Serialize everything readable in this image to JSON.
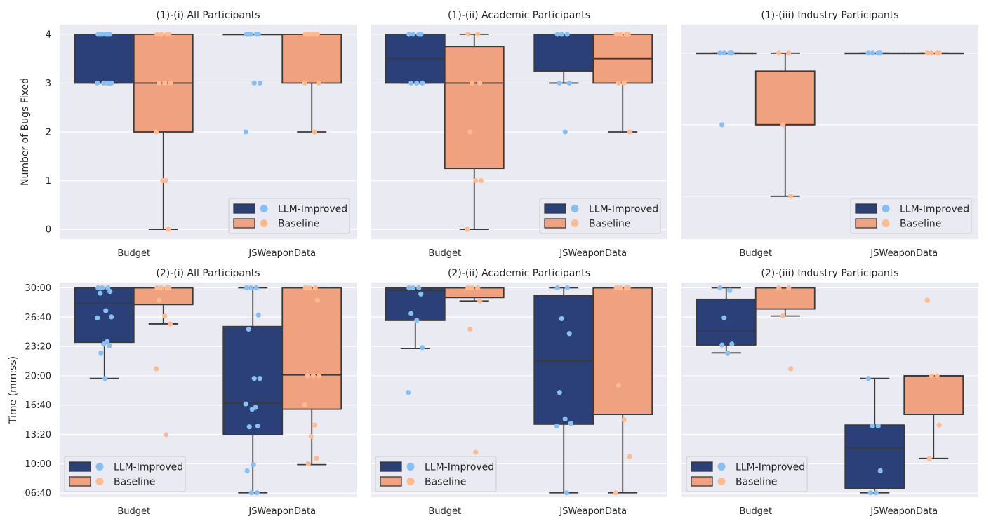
{
  "colors": {
    "background": "#eaeaf2",
    "grid": "#ffffff",
    "llm_box": "#2b3f78",
    "baseline_box": "#f0a17f",
    "llm_point": "#87bff2",
    "baseline_point": "#ffba8f",
    "line": "#3a3a3a"
  },
  "legend": {
    "llm": "LLM-Improved",
    "baseline": "Baseline"
  },
  "chart_data": [
    {
      "type": "box",
      "title": "(1)-(i) All Participants",
      "ylabel": "Number of Bugs Fixed",
      "categories": [
        "Budget",
        "JSWeaponData"
      ],
      "ylim": [
        -0.2,
        4.2
      ],
      "yticks": [
        0,
        1,
        2,
        3,
        4
      ],
      "yticklabels": [
        "0",
        "1",
        "2",
        "3",
        "4"
      ],
      "legend_position": "lower-right",
      "series": [
        {
          "name": "LLM-Improved",
          "boxes": [
            {
              "whislo": 3,
              "q1": 3,
              "med": 4,
              "q3": 4,
              "whishi": 4
            },
            {
              "whislo": 4,
              "q1": 4,
              "med": 4,
              "q3": 4,
              "whishi": 4
            }
          ],
          "points": [
            [
              4,
              4,
              4,
              4,
              4,
              4,
              3,
              3,
              3,
              3,
              3
            ],
            [
              4,
              4,
              4,
              4,
              4,
              3,
              3,
              2
            ]
          ]
        },
        {
          "name": "Baseline",
          "boxes": [
            {
              "whislo": 0,
              "q1": 2,
              "med": 3,
              "q3": 4,
              "whishi": 4
            },
            {
              "whislo": 2,
              "q1": 3,
              "med": 4,
              "q3": 4,
              "whishi": 4
            }
          ],
          "points": [
            [
              4,
              4,
              4,
              4,
              3,
              3,
              3,
              2,
              1,
              1,
              0
            ],
            [
              4,
              4,
              4,
              4,
              4,
              4,
              3,
              3,
              2
            ]
          ]
        }
      ]
    },
    {
      "type": "box",
      "title": "(1)-(ii) Academic Participants",
      "ylabel": "",
      "categories": [
        "Budget",
        "JSWeaponData"
      ],
      "ylim": [
        -0.2,
        4.2
      ],
      "yticks": [
        0,
        1,
        2,
        3,
        4
      ],
      "yticklabels": [
        "",
        "",
        "",
        "",
        ""
      ],
      "legend_position": "lower-right",
      "series": [
        {
          "name": "LLM-Improved",
          "boxes": [
            {
              "whislo": 3,
              "q1": 3,
              "med": 3.5,
              "q3": 4,
              "whishi": 4
            },
            {
              "whislo": 3,
              "q1": 3.25,
              "med": 4,
              "q3": 4,
              "whishi": 4
            }
          ],
          "points": [
            [
              4,
              4,
              4,
              4,
              3,
              3,
              3
            ],
            [
              4,
              4,
              4,
              3,
              3,
              2
            ]
          ]
        },
        {
          "name": "Baseline",
          "boxes": [
            {
              "whislo": 0,
              "q1": 1.25,
              "med": 3,
              "q3": 3.75,
              "whishi": 4
            },
            {
              "whislo": 2,
              "q1": 3,
              "med": 3.5,
              "q3": 4,
              "whishi": 4
            }
          ],
          "points": [
            [
              4,
              4,
              3,
              3,
              2,
              1,
              1,
              0
            ],
            [
              4,
              4,
              4,
              4,
              3,
              3,
              2
            ]
          ]
        }
      ]
    },
    {
      "type": "box",
      "title": "(1)-(iii) Industry Participants",
      "ylabel": "",
      "categories": [
        "Budget",
        "JSWeaponData"
      ],
      "ylim": [
        1.4,
        4.4
      ],
      "yticks": [
        2,
        3,
        4
      ],
      "yticklabels": [
        "",
        "",
        ""
      ],
      "legend_position": "lower-right",
      "series": [
        {
          "name": "LLM-Improved",
          "boxes": [
            {
              "whislo": 4,
              "q1": 4,
              "med": 4,
              "q3": 4,
              "whishi": 4
            },
            {
              "whislo": 4,
              "q1": 4,
              "med": 4,
              "q3": 4,
              "whishi": 4
            }
          ],
          "points": [
            [
              4,
              4,
              4,
              4,
              3
            ],
            [
              4,
              4,
              4,
              4
            ]
          ]
        },
        {
          "name": "Baseline",
          "boxes": [
            {
              "whislo": 2,
              "q1": 3,
              "med": 3,
              "q3": 3.75,
              "whishi": 4
            },
            {
              "whislo": 4,
              "q1": 4,
              "med": 4,
              "q3": 4,
              "whishi": 4
            }
          ],
          "points": [
            [
              4,
              4,
              3,
              2
            ],
            [
              4,
              4,
              4,
              4
            ]
          ]
        }
      ]
    },
    {
      "type": "box",
      "title": "(2)-(i) All Participants",
      "ylabel": "Time (mm:ss)",
      "categories": [
        "Budget",
        "JSWeaponData"
      ],
      "ylim": [
        6.2,
        30.6
      ],
      "yticks": [
        6.667,
        10,
        13.333,
        16.667,
        20,
        23.333,
        26.667,
        30
      ],
      "yticklabels": [
        "06:40",
        "10:00",
        "13:20",
        "16:40",
        "20:00",
        "23:20",
        "26:40",
        "30:00"
      ],
      "legend_position": "lower-left",
      "series": [
        {
          "name": "LLM-Improved",
          "boxes": [
            {
              "whislo": 19.7,
              "q1": 23.8,
              "med": 28.3,
              "q3": 30,
              "whishi": 30
            },
            {
              "whislo": 6.7,
              "q1": 13.3,
              "med": 16.9,
              "q3": 25.6,
              "whishi": 30
            }
          ],
          "points": [
            [
              30,
              30,
              30,
              29.6,
              29.4,
              27.4,
              26.7,
              26.6,
              23.9,
              23.6,
              23.4,
              22.6,
              19.7
            ],
            [
              30,
              30,
              30,
              26.9,
              25.3,
              19.7,
              19.7,
              16.8,
              16.4,
              16.2,
              14.3,
              14.2,
              9.9,
              9.2,
              6.7,
              6.7
            ]
          ]
        },
        {
          "name": "Baseline",
          "boxes": [
            {
              "whislo": 25.9,
              "q1": 28.1,
              "med": 30,
              "q3": 30,
              "whishi": 30
            },
            {
              "whislo": 9.9,
              "q1": 16.2,
              "med": 20.1,
              "q3": 30,
              "whishi": 30
            }
          ],
          "points": [
            [
              30,
              30,
              30,
              30,
              28.6,
              26.8,
              25.9,
              20.8,
              13.3
            ],
            [
              30,
              30,
              30,
              28.6,
              20,
              20,
              20,
              16.7,
              14.4,
              13.1,
              10.6,
              10
            ]
          ]
        }
      ]
    },
    {
      "type": "box",
      "title": "(2)-(ii) Academic Participants",
      "ylabel": "",
      "categories": [
        "Budget",
        "JSWeaponData"
      ],
      "ylim": [
        6.2,
        30.6
      ],
      "yticks": [
        6.667,
        10,
        13.333,
        16.667,
        20,
        23.333,
        26.667,
        30
      ],
      "yticklabels": [
        "",
        "",
        "",
        "",
        "",
        "",
        "",
        ""
      ],
      "legend_position": "lower-left",
      "series": [
        {
          "name": "LLM-Improved",
          "boxes": [
            {
              "whislo": 23.1,
              "q1": 26.3,
              "med": 29.7,
              "q3": 30,
              "whishi": 30
            },
            {
              "whislo": 6.7,
              "q1": 14.5,
              "med": 21.7,
              "q3": 29.1,
              "whishi": 30
            }
          ],
          "points": [
            [
              30,
              30,
              30,
              29.3,
              27.1,
              26.3,
              23.2,
              18.1
            ],
            [
              30,
              30,
              26.5,
              24.8,
              18.1,
              15.1,
              14.6,
              14.3,
              6.7
            ]
          ]
        },
        {
          "name": "Baseline",
          "boxes": [
            {
              "whislo": 28.5,
              "q1": 28.9,
              "med": 30,
              "q3": 30,
              "whishi": 30
            },
            {
              "whislo": 6.7,
              "q1": 15.6,
              "med": 30,
              "q3": 30,
              "whishi": 30
            }
          ],
          "points": [
            [
              30,
              30,
              30,
              28.5,
              25.3,
              11.3
            ],
            [
              30,
              30,
              30,
              30,
              18.9,
              15,
              10.8,
              6.7
            ]
          ]
        }
      ]
    },
    {
      "type": "box",
      "title": "(2)-(iii) Industry Participants",
      "ylabel": "",
      "categories": [
        "Budget",
        "JSWeaponData"
      ],
      "ylim": [
        6.2,
        30.6
      ],
      "yticks": [
        6.667,
        10,
        13.333,
        16.667,
        20,
        23.333,
        26.667,
        30
      ],
      "yticklabels": [
        "",
        "",
        "",
        "",
        "",
        "",
        "",
        ""
      ],
      "legend_position": "lower-left",
      "series": [
        {
          "name": "LLM-Improved",
          "boxes": [
            {
              "whislo": 22.6,
              "q1": 23.5,
              "med": 25.1,
              "q3": 28.7,
              "whishi": 30
            },
            {
              "whislo": 6.7,
              "q1": 7.2,
              "med": 11.8,
              "q3": 14.4,
              "whishi": 19.7
            }
          ],
          "points": [
            [
              30,
              29.7,
              26.6,
              23.6,
              23.5,
              22.6
            ],
            [
              19.7,
              14.3,
              14.3,
              9.2,
              6.7,
              6.7
            ]
          ]
        },
        {
          "name": "Baseline",
          "boxes": [
            {
              "whislo": 26.8,
              "q1": 27.6,
              "med": 30,
              "q3": 30,
              "whishi": 30
            },
            {
              "whislo": 10.6,
              "q1": 15.6,
              "med": 20,
              "q3": 20,
              "whishi": 20
            }
          ],
          "points": [
            [
              30,
              30,
              26.8,
              20.8
            ],
            [
              28.6,
              20,
              20,
              14.4,
              10.6
            ]
          ]
        }
      ]
    }
  ]
}
